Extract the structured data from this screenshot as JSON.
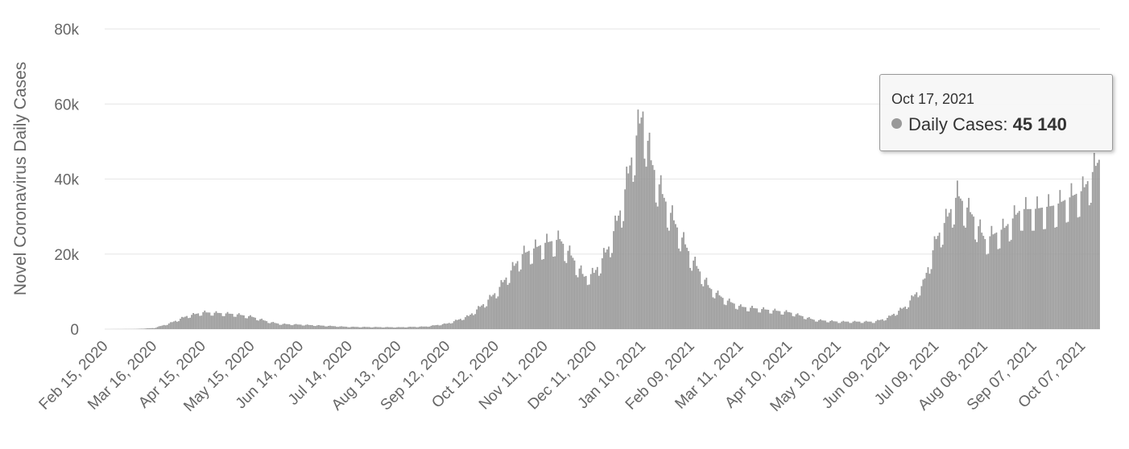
{
  "chart_data": {
    "type": "bar",
    "ylabel": "Novel Coronavirus Daily Cases",
    "ylim": [
      0,
      80000
    ],
    "yticks": [
      {
        "value": 0,
        "label": "0"
      },
      {
        "value": 20000,
        "label": "20k"
      },
      {
        "value": 40000,
        "label": "40k"
      },
      {
        "value": 60000,
        "label": "60k"
      },
      {
        "value": 80000,
        "label": "80k"
      }
    ],
    "x_start": "Feb 15, 2020",
    "x_end": "Oct 17, 2021",
    "x_tick_labels": [
      "Feb 15, 2020",
      "Mar 16, 2020",
      "Apr 15, 2020",
      "May 15, 2020",
      "Jun 14, 2020",
      "Jul 14, 2020",
      "Aug 13, 2020",
      "Sep 12, 2020",
      "Oct 12, 2020",
      "Nov 11, 2020",
      "Dec 11, 2020",
      "Jan 10, 2021",
      "Feb 09, 2021",
      "Mar 11, 2021",
      "Apr 10, 2021",
      "May 10, 2021",
      "Jun 09, 2021",
      "Jul 09, 2021",
      "Aug 08, 2021",
      "Sep 07, 2021",
      "Oct 07, 2021"
    ],
    "grid": true,
    "bar_color": "#999999",
    "series": [
      {
        "name": "Daily Cases",
        "anchors": [
          [
            "Feb 15, 2020",
            0
          ],
          [
            "Mar 05, 2020",
            50
          ],
          [
            "Mar 16, 2020",
            300
          ],
          [
            "Mar 25, 2020",
            1500
          ],
          [
            "Apr 05, 2020",
            3500
          ],
          [
            "Apr 15, 2020",
            4500
          ],
          [
            "Apr 25, 2020",
            4300
          ],
          [
            "May 05, 2020",
            4000
          ],
          [
            "May 15, 2020",
            3300
          ],
          [
            "May 25, 2020",
            2000
          ],
          [
            "Jun 01, 2020",
            1400
          ],
          [
            "Jun 14, 2020",
            1200
          ],
          [
            "Jul 14, 2020",
            600
          ],
          [
            "Aug 13, 2020",
            500
          ],
          [
            "Aug 30, 2020",
            700
          ],
          [
            "Sep 12, 2020",
            1500
          ],
          [
            "Sep 25, 2020",
            3500
          ],
          [
            "Oct 05, 2020",
            7000
          ],
          [
            "Oct 12, 2020",
            10000
          ],
          [
            "Oct 20, 2020",
            15000
          ],
          [
            "Oct 28, 2020",
            20000
          ],
          [
            "Nov 11, 2020",
            23000
          ],
          [
            "Nov 20, 2020",
            24000
          ],
          [
            "Nov 28, 2020",
            19000
          ],
          [
            "Dec 05, 2020",
            14000
          ],
          [
            "Dec 11, 2020",
            15000
          ],
          [
            "Dec 20, 2020",
            22000
          ],
          [
            "Dec 28, 2020",
            33000
          ],
          [
            "Jan 05, 2021",
            50000
          ],
          [
            "Jan 10, 2021",
            58000
          ],
          [
            "Jan 15, 2021",
            45000
          ],
          [
            "Jan 22, 2021",
            36000
          ],
          [
            "Jan 30, 2021",
            28000
          ],
          [
            "Feb 09, 2021",
            19000
          ],
          [
            "Feb 20, 2021",
            11000
          ],
          [
            "Mar 01, 2021",
            8000
          ],
          [
            "Mar 11, 2021",
            6000
          ],
          [
            "Apr 10, 2021",
            4500
          ],
          [
            "Apr 25, 2021",
            2500
          ],
          [
            "May 10, 2021",
            2000
          ],
          [
            "Jun 01, 2021",
            2000
          ],
          [
            "Jun 09, 2021",
            3000
          ],
          [
            "Jun 20, 2021",
            6000
          ],
          [
            "Jul 01, 2021",
            12000
          ],
          [
            "Jul 09, 2021",
            24000
          ],
          [
            "Jul 16, 2021",
            30000
          ],
          [
            "Jul 22, 2021",
            36000
          ],
          [
            "Aug 01, 2021",
            30000
          ],
          [
            "Aug 08, 2021",
            24000
          ],
          [
            "Aug 20, 2021",
            27000
          ],
          [
            "Aug 30, 2021",
            32000
          ],
          [
            "Sep 07, 2021",
            32000
          ],
          [
            "Sep 20, 2021",
            33000
          ],
          [
            "Oct 07, 2021",
            37000
          ],
          [
            "Oct 17, 2021",
            45140
          ]
        ]
      }
    ],
    "tooltip": {
      "date": "Oct 17, 2021",
      "series_label": "Daily Cases:",
      "value": "45 140"
    }
  }
}
